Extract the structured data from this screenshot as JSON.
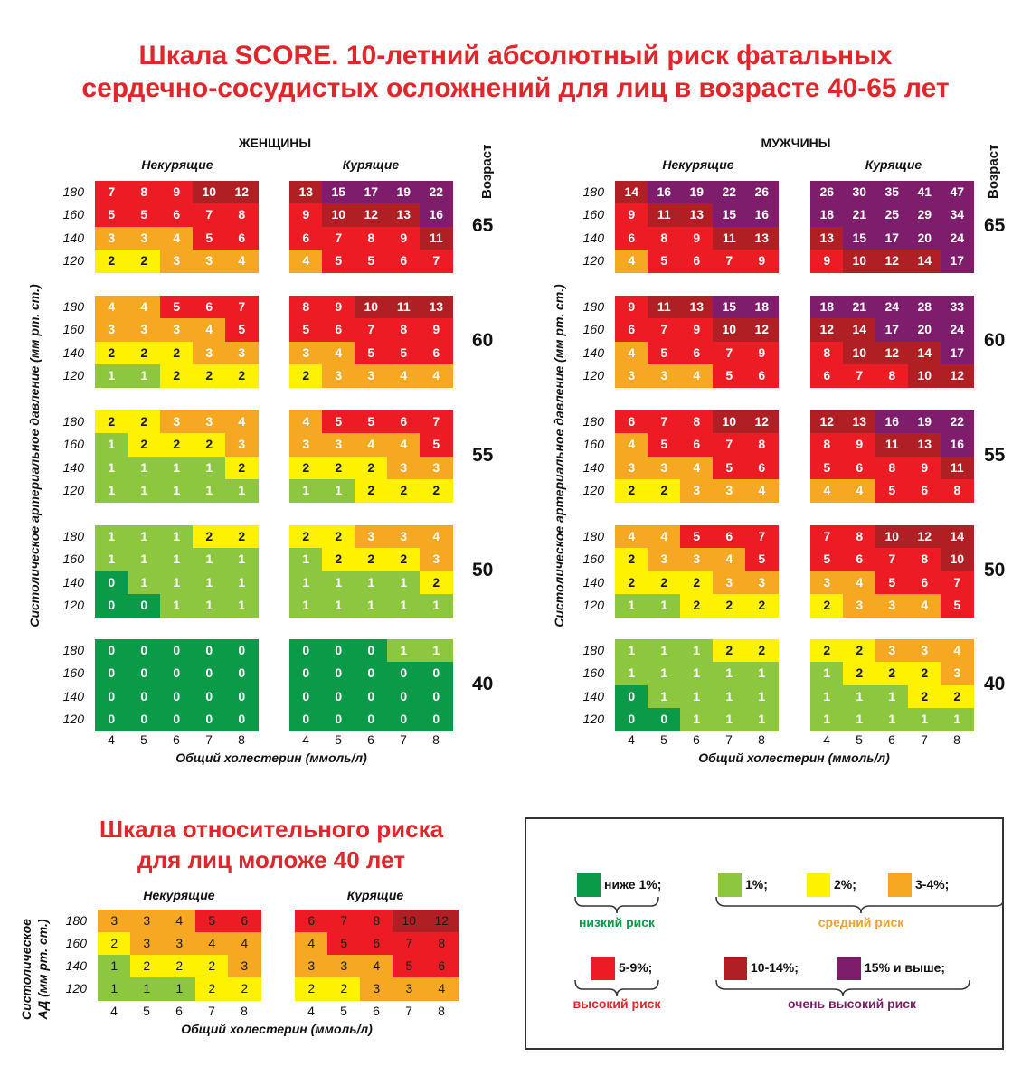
{
  "title": "Шкала SCORE.  10-летний абсолютный риск фатальных сердечно-сосудистых осложнений для лиц в возрасте 40-65 лет",
  "title_lines": [
    "Шкала SCORE.  10-летний абсолютный риск фатальных",
    "сердечно-сосудистых осложнений для лиц в возрасте 40-65 лет"
  ],
  "labels": {
    "women": "ЖЕНЩИНЫ",
    "men": "МУЖЧИНЫ",
    "nonsmoking": "Некурящие",
    "smoking": "Курящие",
    "age": "Возраст",
    "ylabel": "Систолическое артериальное давление (мм рт. ст.)",
    "xlabel": "Общий холестерин (ммоль/л)"
  },
  "young": {
    "title_lines": [
      "Шкала относительного риска",
      "для лиц моложе 40 лет"
    ],
    "ylabel_lines": [
      "Систолическое",
      "АД (мм рт. ст.)"
    ]
  },
  "legend": {
    "items": [
      {
        "label": "ниже 1%;",
        "color": "#0b9b48"
      },
      {
        "label": "1%;",
        "color": "#8dc63f"
      },
      {
        "label": "2%;",
        "color": "#fff200"
      },
      {
        "label": "3-4%;",
        "color": "#f7a823"
      },
      {
        "label": "5-9%;",
        "color": "#ed1c24"
      },
      {
        "label": "10-14%;",
        "color": "#b01f24"
      },
      {
        "label": "15% и выше;",
        "color": "#7d1d6b"
      }
    ],
    "groups": {
      "low": {
        "label": "низкий риск",
        "color": "#0b9b48"
      },
      "medium": {
        "label": "средний риск",
        "color": "#f0a030"
      },
      "high": {
        "label": "высокий риск",
        "color": "#e0252b"
      },
      "very_high": {
        "label": "очень высокий риск",
        "color": "#7d1d6b"
      }
    }
  },
  "chart_data": [
    {
      "type": "heatmap",
      "title": "Шкала SCORE",
      "x_label": "Общий холестерин (ммоль/л)",
      "y_label": "Систолическое артериальное давление (мм рт. ст.)",
      "cholesterol": [
        4,
        5,
        6,
        7,
        8
      ],
      "systolic_bp": [
        180,
        160,
        140,
        120
      ],
      "panels": [
        {
          "sex": "ЖЕНЩИНЫ",
          "smoking": "Некурящие",
          "ages": {
            "65": [
              [
                7,
                8,
                9,
                10,
                12
              ],
              [
                5,
                5,
                6,
                7,
                8
              ],
              [
                3,
                3,
                4,
                5,
                6
              ],
              [
                2,
                2,
                3,
                3,
                4
              ]
            ],
            "60": [
              [
                4,
                4,
                5,
                6,
                7
              ],
              [
                3,
                3,
                3,
                4,
                5
              ],
              [
                2,
                2,
                2,
                3,
                3
              ],
              [
                1,
                1,
                2,
                2,
                2
              ]
            ],
            "55": [
              [
                2,
                2,
                3,
                3,
                4
              ],
              [
                1,
                2,
                2,
                2,
                3
              ],
              [
                1,
                1,
                1,
                1,
                2
              ],
              [
                1,
                1,
                1,
                1,
                1
              ]
            ],
            "50": [
              [
                1,
                1,
                1,
                2,
                2
              ],
              [
                1,
                1,
                1,
                1,
                1
              ],
              [
                0,
                1,
                1,
                1,
                1
              ],
              [
                0,
                0,
                1,
                1,
                1
              ]
            ],
            "40": [
              [
                0,
                0,
                0,
                0,
                0
              ],
              [
                0,
                0,
                0,
                0,
                0
              ],
              [
                0,
                0,
                0,
                0,
                0
              ],
              [
                0,
                0,
                0,
                0,
                0
              ]
            ]
          }
        },
        {
          "sex": "ЖЕНЩИНЫ",
          "smoking": "Курящие",
          "ages": {
            "65": [
              [
                13,
                15,
                17,
                19,
                22
              ],
              [
                9,
                10,
                12,
                13,
                16
              ],
              [
                6,
                7,
                8,
                9,
                11
              ],
              [
                4,
                5,
                5,
                6,
                7
              ]
            ],
            "60": [
              [
                8,
                9,
                10,
                11,
                13
              ],
              [
                5,
                6,
                7,
                8,
                9
              ],
              [
                3,
                4,
                5,
                5,
                6
              ],
              [
                2,
                3,
                3,
                4,
                4
              ]
            ],
            "55": [
              [
                4,
                5,
                5,
                6,
                7
              ],
              [
                3,
                3,
                4,
                4,
                5
              ],
              [
                2,
                2,
                2,
                3,
                3
              ],
              [
                1,
                1,
                2,
                2,
                2
              ]
            ],
            "50": [
              [
                2,
                2,
                3,
                3,
                4
              ],
              [
                1,
                2,
                2,
                2,
                3
              ],
              [
                1,
                1,
                1,
                1,
                2
              ],
              [
                1,
                1,
                1,
                1,
                1
              ]
            ],
            "40": [
              [
                0,
                0,
                0,
                1,
                1
              ],
              [
                0,
                0,
                0,
                0,
                0
              ],
              [
                0,
                0,
                0,
                0,
                0
              ],
              [
                0,
                0,
                0,
                0,
                0
              ]
            ]
          }
        },
        {
          "sex": "МУЖЧИНЫ",
          "smoking": "Некурящие",
          "ages": {
            "65": [
              [
                14,
                16,
                19,
                22,
                26
              ],
              [
                9,
                11,
                13,
                15,
                16
              ],
              [
                6,
                8,
                9,
                11,
                13
              ],
              [
                4,
                5,
                6,
                7,
                9
              ]
            ],
            "60": [
              [
                9,
                11,
                13,
                15,
                18
              ],
              [
                6,
                7,
                9,
                10,
                12
              ],
              [
                4,
                5,
                6,
                7,
                9
              ],
              [
                3,
                3,
                4,
                5,
                6
              ]
            ],
            "55": [
              [
                6,
                7,
                8,
                10,
                12
              ],
              [
                4,
                5,
                6,
                7,
                8
              ],
              [
                3,
                3,
                4,
                5,
                6
              ],
              [
                2,
                2,
                3,
                3,
                4
              ]
            ],
            "50": [
              [
                4,
                4,
                5,
                6,
                7
              ],
              [
                2,
                3,
                3,
                4,
                5
              ],
              [
                2,
                2,
                2,
                3,
                3
              ],
              [
                1,
                1,
                2,
                2,
                2
              ]
            ],
            "40": [
              [
                1,
                1,
                1,
                2,
                2
              ],
              [
                1,
                1,
                1,
                1,
                1
              ],
              [
                0,
                1,
                1,
                1,
                1
              ],
              [
                0,
                0,
                1,
                1,
                1
              ]
            ]
          }
        },
        {
          "sex": "МУЖЧИНЫ",
          "smoking": "Курящие",
          "ages": {
            "65": [
              [
                26,
                30,
                35,
                41,
                47
              ],
              [
                18,
                21,
                25,
                29,
                34
              ],
              [
                13,
                15,
                17,
                20,
                24
              ],
              [
                9,
                10,
                12,
                14,
                17
              ]
            ],
            "60": [
              [
                18,
                21,
                24,
                28,
                33
              ],
              [
                12,
                14,
                17,
                20,
                24
              ],
              [
                8,
                10,
                12,
                14,
                17
              ],
              [
                6,
                7,
                8,
                10,
                12
              ]
            ],
            "55": [
              [
                12,
                13,
                16,
                19,
                22
              ],
              [
                8,
                9,
                11,
                13,
                16
              ],
              [
                5,
                6,
                8,
                9,
                11
              ],
              [
                4,
                4,
                5,
                6,
                8
              ]
            ],
            "50": [
              [
                7,
                8,
                10,
                12,
                14
              ],
              [
                5,
                6,
                7,
                8,
                10
              ],
              [
                3,
                4,
                5,
                6,
                7
              ],
              [
                2,
                3,
                3,
                4,
                5
              ]
            ],
            "40": [
              [
                2,
                2,
                3,
                3,
                4
              ],
              [
                1,
                2,
                2,
                2,
                3
              ],
              [
                1,
                1,
                1,
                2,
                2
              ],
              [
                1,
                1,
                1,
                1,
                1
              ]
            ]
          }
        }
      ],
      "age_order": [
        "65",
        "60",
        "55",
        "50",
        "40"
      ]
    },
    {
      "type": "heatmap",
      "title": "Шкала относительного риска для лиц моложе 40 лет",
      "x_label": "Общий холестерин (ммоль/л)",
      "y_label": "Систолическое АД (мм рт. ст.)",
      "cholesterol": [
        4,
        5,
        6,
        7,
        8
      ],
      "systolic_bp": [
        180,
        160,
        140,
        120
      ],
      "panels": [
        {
          "smoking": "Некурящие",
          "values": [
            [
              3,
              3,
              4,
              5,
              6
            ],
            [
              2,
              3,
              3,
              4,
              4
            ],
            [
              1,
              2,
              2,
              2,
              3
            ],
            [
              1,
              1,
              1,
              2,
              2
            ]
          ]
        },
        {
          "smoking": "Курящие",
          "values": [
            [
              6,
              7,
              8,
              10,
              12
            ],
            [
              4,
              5,
              6,
              7,
              8
            ],
            [
              3,
              3,
              4,
              5,
              6
            ],
            [
              2,
              2,
              3,
              3,
              4
            ]
          ]
        }
      ]
    }
  ]
}
